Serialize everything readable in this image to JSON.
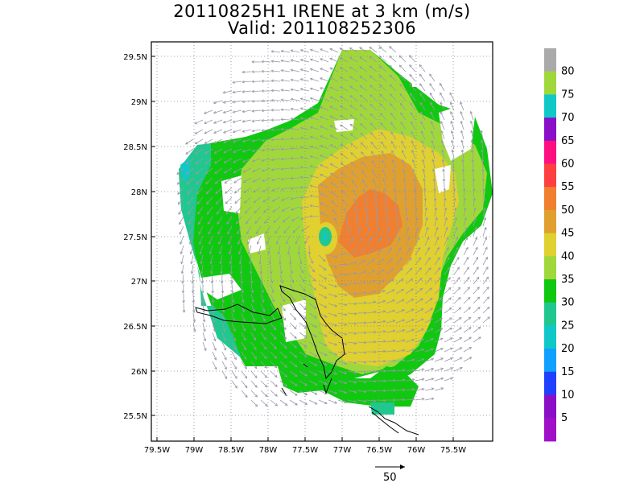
{
  "title": {
    "line1": "20110825H1 IRENE at 3 km (m/s)",
    "line2": "Valid: 201108252306"
  },
  "map": {
    "lat_labels": [
      "29.5N",
      "29N",
      "28.5N",
      "28N",
      "27.5N",
      "27N",
      "26.5N",
      "26N",
      "25.5N"
    ],
    "lon_labels": [
      "79.5W",
      "79W",
      "78.5W",
      "78W",
      "77.5W",
      "77W",
      "76.5W",
      "76W",
      "75.5W"
    ],
    "grid": "dotted"
  },
  "colorbar": {
    "labels": [
      "80",
      "75",
      "70",
      "65",
      "60",
      "55",
      "50",
      "45",
      "40",
      "35",
      "30",
      "25",
      "20",
      "15",
      "10",
      "5"
    ],
    "colors": [
      "#aaaaaa",
      "#a0d83c",
      "#10c8c8",
      "#8a10c8",
      "#ff1080",
      "#ff4040",
      "#f08030",
      "#e0a030",
      "#e0d030",
      "#a0d83c",
      "#10c810",
      "#20c890",
      "#10c8c8",
      "#10a0ff",
      "#2040ff",
      "#8a10c8",
      "#a010c8"
    ]
  },
  "vector_legend": {
    "label": "50"
  },
  "colors": {
    "v30": "#20c890",
    "v35": "#10c810",
    "v40": "#a0d83c",
    "v45": "#e0d030",
    "v50": "#e0a030",
    "v55": "#f08030",
    "v25": "#10c8c8",
    "v20": "#10a0ff",
    "arrow": "#9999aa"
  }
}
